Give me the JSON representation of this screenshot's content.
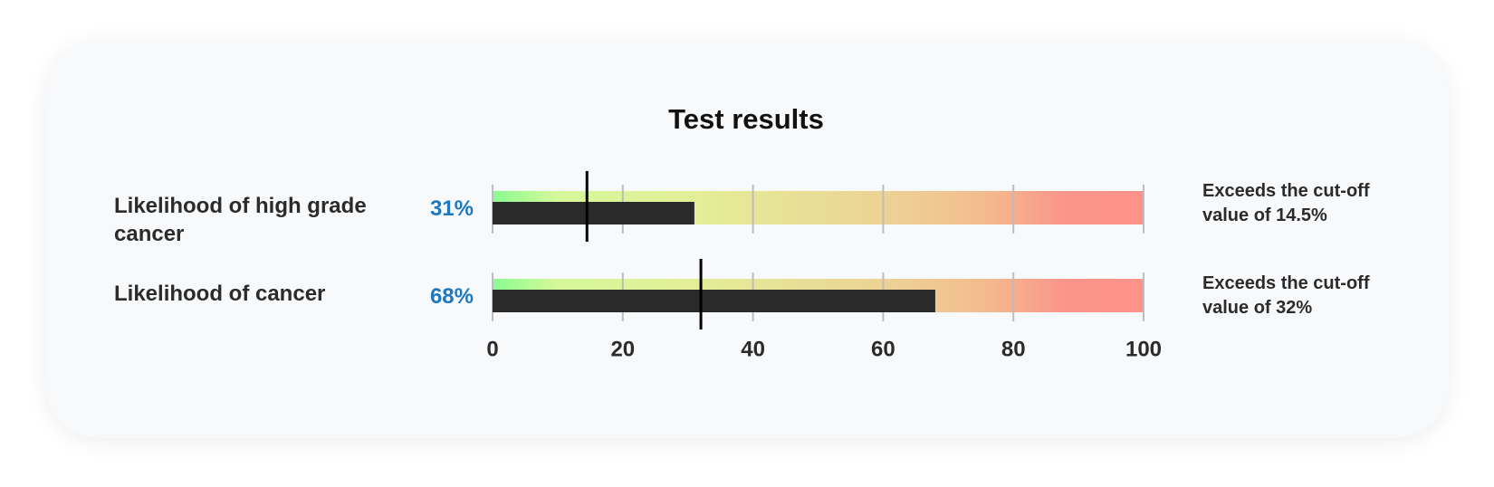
{
  "chart_data": {
    "type": "bullet",
    "title": "Test results",
    "categories": [
      "Likelihood of high grade cancer",
      "Likelihood of cancer"
    ],
    "values": [
      31,
      68
    ],
    "value_labels": [
      "31%",
      "68%"
    ],
    "targets": [
      14.5,
      32
    ],
    "notes": [
      "Exceeds the cut-off value of 14.5%",
      "Exceeds the cut-off value of 32%"
    ],
    "xlim": [
      0,
      100
    ],
    "xticks": [
      0,
      20,
      40,
      60,
      80,
      100
    ],
    "bar_color": "#2a2a2a",
    "value_label_color": "#1f78bd",
    "target_color": "#000000"
  }
}
